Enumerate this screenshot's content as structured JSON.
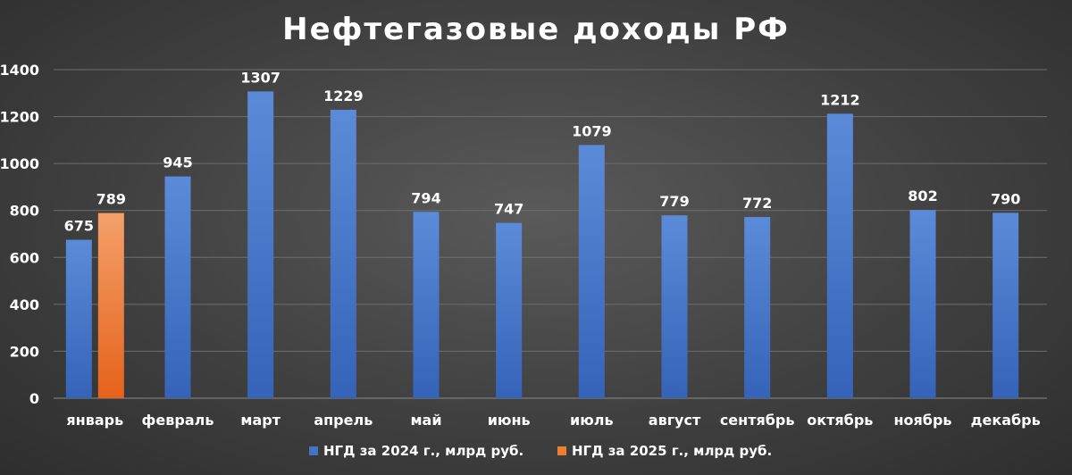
{
  "chart_data": {
    "type": "bar",
    "title": "Нефтегазовые доходы РФ",
    "xlabel": "",
    "ylabel": "",
    "ylim": [
      0,
      1400
    ],
    "yticks": [
      0,
      200,
      400,
      600,
      800,
      1000,
      1200,
      1400
    ],
    "grid": true,
    "legend_position": "bottom",
    "categories": [
      "январь",
      "февраль",
      "март",
      "апрель",
      "май",
      "июнь",
      "июль",
      "август",
      "сентябрь",
      "октябрь",
      "ноябрь",
      "декабрь"
    ],
    "series": [
      {
        "name": "НГД за 2024 г., млрд руб.",
        "color": "#4472c4",
        "values": [
          675,
          945,
          1307,
          1229,
          794,
          747,
          1079,
          779,
          772,
          1212,
          802,
          790
        ]
      },
      {
        "name": "НГД за 2025 г., млрд руб.",
        "color": "#ed7d31",
        "values": [
          789,
          null,
          null,
          null,
          null,
          null,
          null,
          null,
          null,
          null,
          null,
          null
        ]
      }
    ]
  }
}
